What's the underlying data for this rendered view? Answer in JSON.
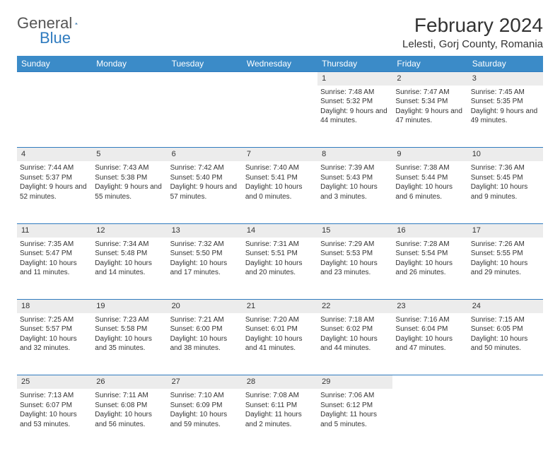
{
  "logo": {
    "general": "General",
    "blue": "Blue"
  },
  "title": "February 2024",
  "location": "Lelesti, Gorj County, Romania",
  "colors": {
    "header_bg": "#3b8bc8",
    "header_text": "#ffffff",
    "daynum_bg": "#ececec",
    "border": "#2f7bbf",
    "text": "#333333",
    "logo_blue": "#2f7bbf",
    "logo_gray": "#555555"
  },
  "weekdays": [
    "Sunday",
    "Monday",
    "Tuesday",
    "Wednesday",
    "Thursday",
    "Friday",
    "Saturday"
  ],
  "weeks": [
    [
      null,
      null,
      null,
      null,
      {
        "d": "1",
        "sr": "7:48 AM",
        "ss": "5:32 PM",
        "dl": "9 hours and 44 minutes."
      },
      {
        "d": "2",
        "sr": "7:47 AM",
        "ss": "5:34 PM",
        "dl": "9 hours and 47 minutes."
      },
      {
        "d": "3",
        "sr": "7:45 AM",
        "ss": "5:35 PM",
        "dl": "9 hours and 49 minutes."
      }
    ],
    [
      {
        "d": "4",
        "sr": "7:44 AM",
        "ss": "5:37 PM",
        "dl": "9 hours and 52 minutes."
      },
      {
        "d": "5",
        "sr": "7:43 AM",
        "ss": "5:38 PM",
        "dl": "9 hours and 55 minutes."
      },
      {
        "d": "6",
        "sr": "7:42 AM",
        "ss": "5:40 PM",
        "dl": "9 hours and 57 minutes."
      },
      {
        "d": "7",
        "sr": "7:40 AM",
        "ss": "5:41 PM",
        "dl": "10 hours and 0 minutes."
      },
      {
        "d": "8",
        "sr": "7:39 AM",
        "ss": "5:43 PM",
        "dl": "10 hours and 3 minutes."
      },
      {
        "d": "9",
        "sr": "7:38 AM",
        "ss": "5:44 PM",
        "dl": "10 hours and 6 minutes."
      },
      {
        "d": "10",
        "sr": "7:36 AM",
        "ss": "5:45 PM",
        "dl": "10 hours and 9 minutes."
      }
    ],
    [
      {
        "d": "11",
        "sr": "7:35 AM",
        "ss": "5:47 PM",
        "dl": "10 hours and 11 minutes."
      },
      {
        "d": "12",
        "sr": "7:34 AM",
        "ss": "5:48 PM",
        "dl": "10 hours and 14 minutes."
      },
      {
        "d": "13",
        "sr": "7:32 AM",
        "ss": "5:50 PM",
        "dl": "10 hours and 17 minutes."
      },
      {
        "d": "14",
        "sr": "7:31 AM",
        "ss": "5:51 PM",
        "dl": "10 hours and 20 minutes."
      },
      {
        "d": "15",
        "sr": "7:29 AM",
        "ss": "5:53 PM",
        "dl": "10 hours and 23 minutes."
      },
      {
        "d": "16",
        "sr": "7:28 AM",
        "ss": "5:54 PM",
        "dl": "10 hours and 26 minutes."
      },
      {
        "d": "17",
        "sr": "7:26 AM",
        "ss": "5:55 PM",
        "dl": "10 hours and 29 minutes."
      }
    ],
    [
      {
        "d": "18",
        "sr": "7:25 AM",
        "ss": "5:57 PM",
        "dl": "10 hours and 32 minutes."
      },
      {
        "d": "19",
        "sr": "7:23 AM",
        "ss": "5:58 PM",
        "dl": "10 hours and 35 minutes."
      },
      {
        "d": "20",
        "sr": "7:21 AM",
        "ss": "6:00 PM",
        "dl": "10 hours and 38 minutes."
      },
      {
        "d": "21",
        "sr": "7:20 AM",
        "ss": "6:01 PM",
        "dl": "10 hours and 41 minutes."
      },
      {
        "d": "22",
        "sr": "7:18 AM",
        "ss": "6:02 PM",
        "dl": "10 hours and 44 minutes."
      },
      {
        "d": "23",
        "sr": "7:16 AM",
        "ss": "6:04 PM",
        "dl": "10 hours and 47 minutes."
      },
      {
        "d": "24",
        "sr": "7:15 AM",
        "ss": "6:05 PM",
        "dl": "10 hours and 50 minutes."
      }
    ],
    [
      {
        "d": "25",
        "sr": "7:13 AM",
        "ss": "6:07 PM",
        "dl": "10 hours and 53 minutes."
      },
      {
        "d": "26",
        "sr": "7:11 AM",
        "ss": "6:08 PM",
        "dl": "10 hours and 56 minutes."
      },
      {
        "d": "27",
        "sr": "7:10 AM",
        "ss": "6:09 PM",
        "dl": "10 hours and 59 minutes."
      },
      {
        "d": "28",
        "sr": "7:08 AM",
        "ss": "6:11 PM",
        "dl": "11 hours and 2 minutes."
      },
      {
        "d": "29",
        "sr": "7:06 AM",
        "ss": "6:12 PM",
        "dl": "11 hours and 5 minutes."
      },
      null,
      null
    ]
  ],
  "labels": {
    "sunrise": "Sunrise:",
    "sunset": "Sunset:",
    "daylight": "Daylight:"
  }
}
